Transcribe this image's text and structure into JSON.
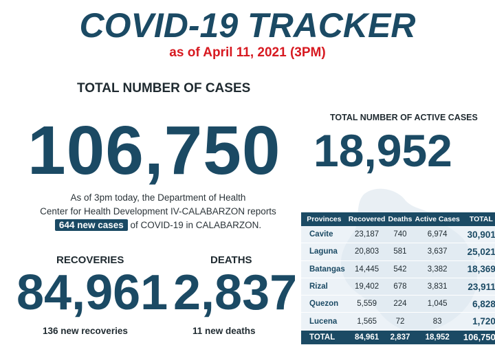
{
  "header": {
    "title": "COVID-19 TRACKER",
    "as_of": "as of April 11, 2021 (3PM)"
  },
  "total_cases": {
    "label": "TOTAL NUMBER OF CASES",
    "value": "106,750"
  },
  "active_cases": {
    "label": "TOTAL NUMBER OF ACTIVE CASES",
    "value": "18,952"
  },
  "report": {
    "line1": "As of 3pm today, the Department of Health",
    "line2": "Center for Health Development IV-CALABARZON reports",
    "new_cases": "644 new cases",
    "line3_rest": "of COVID-19 in CALABARZON."
  },
  "recoveries": {
    "label": "RECOVERIES",
    "value": "84,961",
    "new": "136 new recoveries"
  },
  "deaths": {
    "label": "DEATHS",
    "value": "2,837",
    "new": "11 new deaths"
  },
  "table": {
    "headers": [
      "Provinces",
      "Recovered",
      "Deaths",
      "Active Cases",
      "TOTAL"
    ],
    "rows": [
      [
        "Cavite",
        "23,187",
        "740",
        "6,974",
        "30,901"
      ],
      [
        "Laguna",
        "20,803",
        "581",
        "3,637",
        "25,021"
      ],
      [
        "Batangas",
        "14,445",
        "542",
        "3,382",
        "18,369"
      ],
      [
        "Rizal",
        "19,402",
        "678",
        "3,831",
        "23,911"
      ],
      [
        "Quezon",
        "5,559",
        "224",
        "1,045",
        "6,828"
      ],
      [
        "Lucena",
        "1,565",
        "72",
        "83",
        "1,720"
      ]
    ],
    "footer": [
      "TOTAL",
      "84,961",
      "2,837",
      "18,952",
      "106,750"
    ]
  },
  "colors": {
    "primary": "#1b4a64",
    "accent_red": "#d71920"
  }
}
